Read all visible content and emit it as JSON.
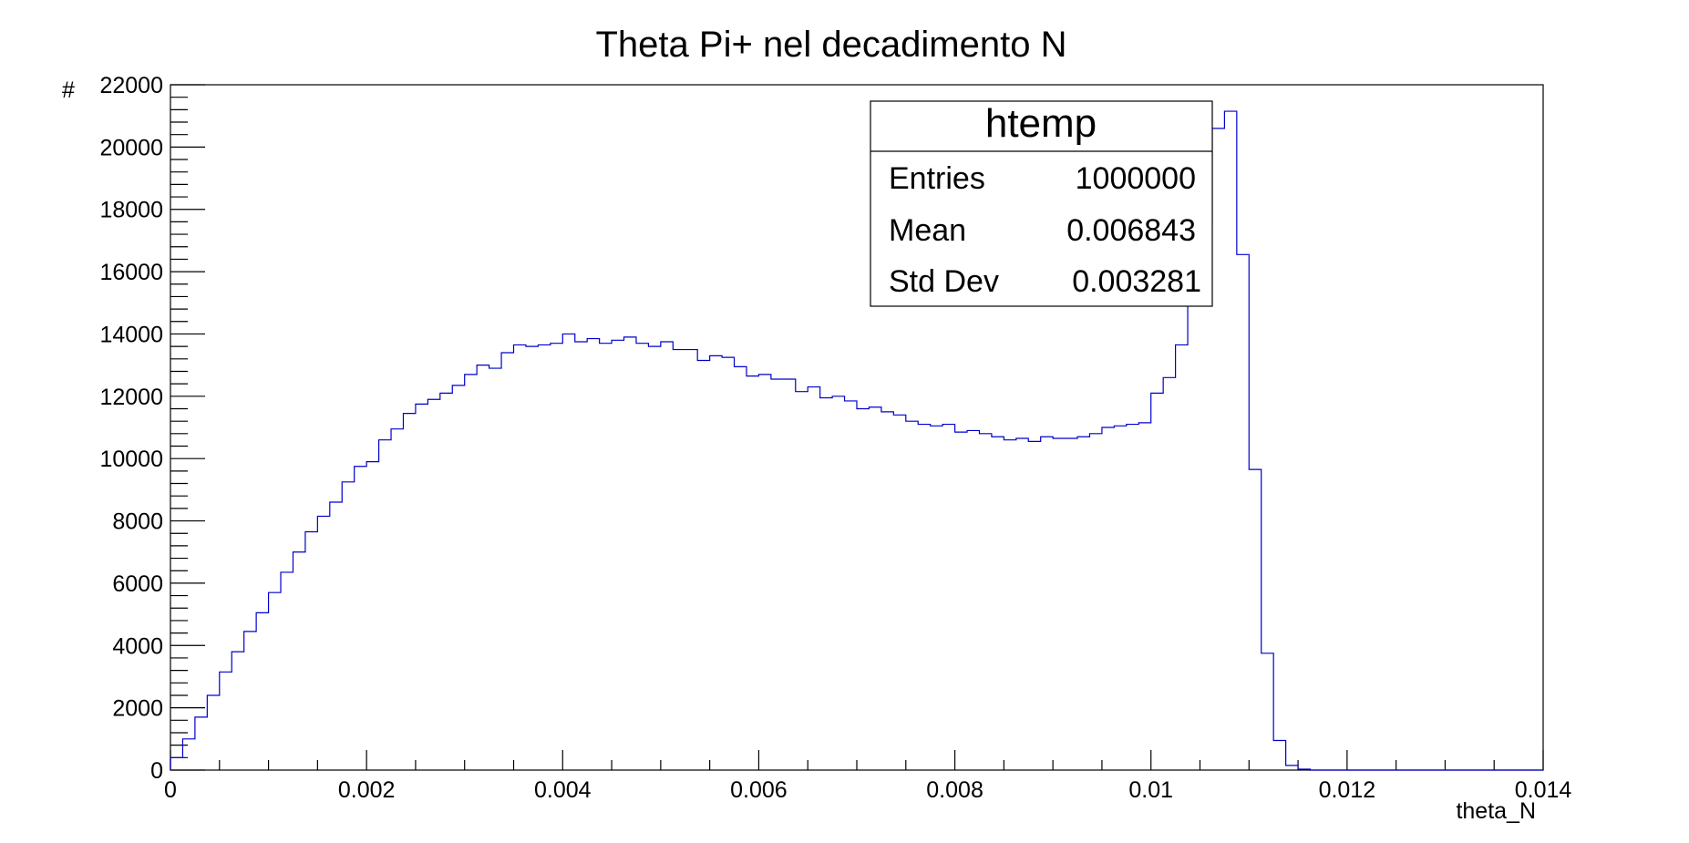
{
  "chart_data": {
    "type": "histogram",
    "title": "Theta Pi+ nel decadimento N",
    "xlabel": "theta_N",
    "ylabel": "#",
    "xlim": [
      0,
      0.014
    ],
    "ylim": [
      0,
      22000
    ],
    "x_ticks": [
      0,
      0.002,
      0.004,
      0.006,
      0.008,
      0.01,
      0.012,
      0.014
    ],
    "x_tick_labels": [
      "0",
      "0.002",
      "0.004",
      "0.006",
      "0.008",
      "0.01",
      "0.012",
      "0.014"
    ],
    "y_ticks": [
      0,
      2000,
      4000,
      6000,
      8000,
      10000,
      12000,
      14000,
      16000,
      18000,
      20000,
      22000
    ],
    "y_tick_labels": [
      "0",
      "2000",
      "4000",
      "6000",
      "8000",
      "10000",
      "12000",
      "14000",
      "16000",
      "18000",
      "20000",
      "22000"
    ],
    "bin_low": 0,
    "bin_width": 0.000125,
    "series": [
      {
        "color": "#0000cc",
        "values": [
          400,
          1000,
          1700,
          2400,
          3150,
          3800,
          4450,
          5050,
          5700,
          6350,
          7000,
          7650,
          8150,
          8600,
          9250,
          9750,
          9900,
          10600,
          10950,
          11450,
          11750,
          11900,
          12100,
          12350,
          12700,
          13000,
          12900,
          13400,
          13650,
          13600,
          13650,
          13700,
          14000,
          13750,
          13850,
          13700,
          13800,
          13900,
          13700,
          13600,
          13750,
          13500,
          13500,
          13150,
          13300,
          13250,
          12950,
          12650,
          12700,
          12550,
          12550,
          12150,
          12300,
          11950,
          12000,
          11850,
          11600,
          11650,
          11500,
          11400,
          11200,
          11100,
          11050,
          11100,
          10850,
          10900,
          10800,
          10700,
          10600,
          10650,
          10550,
          10700,
          10650,
          10650,
          10700,
          10800,
          11000,
          11050,
          11100,
          11150,
          12100,
          12600,
          13650,
          15250,
          17600,
          20600,
          21150,
          16550,
          9650,
          3750,
          950,
          150,
          30,
          0,
          0,
          0,
          0,
          0,
          0,
          0,
          0,
          0,
          0,
          0,
          0,
          0,
          0,
          0,
          0,
          0,
          0,
          0
        ]
      }
    ]
  },
  "stats_box": {
    "title": "htemp",
    "rows": [
      {
        "label": "Entries",
        "value": "1000000"
      },
      {
        "label": "Mean",
        "value": "0.006843"
      },
      {
        "label": "Std Dev",
        "value": "0.003281"
      }
    ]
  }
}
